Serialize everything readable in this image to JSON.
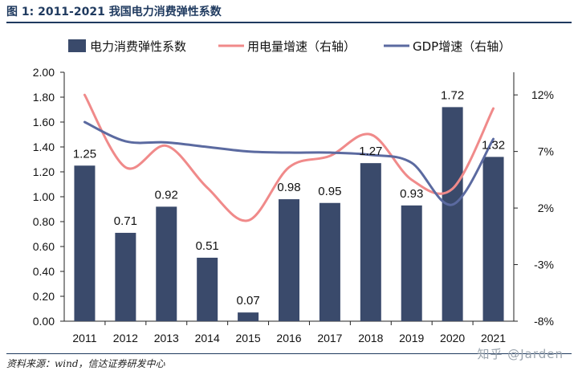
{
  "header": {
    "figure_title": "图 1: 2011-2021 我国电力消费弹性系数"
  },
  "footer": {
    "source": "资料来源：wind，信达证券研发中心",
    "watermark": "知乎 @Jarden"
  },
  "chart_data": {
    "type": "bar+line",
    "title": "2011-2021 我国电力消费弹性系数",
    "categories": [
      "2011",
      "2012",
      "2013",
      "2014",
      "2015",
      "2016",
      "2017",
      "2018",
      "2019",
      "2020",
      "2021"
    ],
    "bar_series": {
      "name": "电力消费弹性系数",
      "values": [
        1.25,
        0.71,
        0.92,
        0.51,
        0.07,
        0.98,
        0.95,
        1.27,
        0.93,
        1.72,
        1.32
      ],
      "labels": [
        "1.25",
        "0.71",
        "0.92",
        "0.51",
        "0.07",
        "0.98",
        "0.95",
        "1.27",
        "0.93",
        "1.72",
        "1.32"
      ],
      "color": "#3a4a6b"
    },
    "line_series": [
      {
        "name": "用电量增速（右轴）",
        "values": [
          12.0,
          5.6,
          7.5,
          3.8,
          0.9,
          5.6,
          6.6,
          8.5,
          4.5,
          3.7,
          10.8
        ],
        "color": "#f08a8a"
      },
      {
        "name": "GDP增速（右轴）",
        "values": [
          9.6,
          7.9,
          7.8,
          7.4,
          7.0,
          6.9,
          6.9,
          6.7,
          6.0,
          2.3,
          8.1
        ],
        "color": "#5b6aa0"
      }
    ],
    "left_axis": {
      "ylim": [
        0.0,
        2.0
      ],
      "ticks": [
        "0.00",
        "0.20",
        "0.40",
        "0.60",
        "0.80",
        "1.00",
        "1.20",
        "1.40",
        "1.60",
        "1.80",
        "2.00"
      ]
    },
    "right_axis": {
      "ylim": [
        -8,
        14
      ],
      "tick_values": [
        -8,
        -3,
        2,
        7,
        12
      ],
      "ticks": [
        "-8%",
        "-3%",
        "2%",
        "7%",
        "12%"
      ]
    },
    "legend_position": "top"
  }
}
